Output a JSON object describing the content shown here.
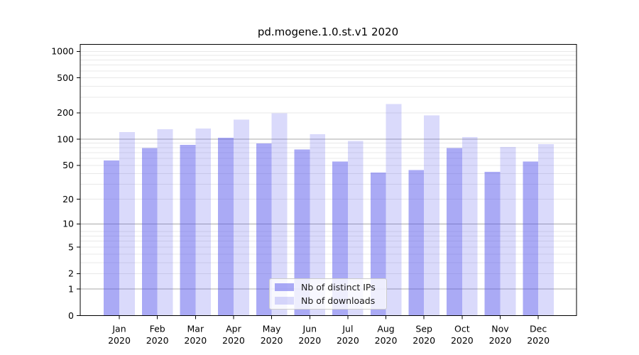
{
  "chart_data": {
    "type": "bar",
    "title": "pd.mogene.1.0.st.v1 2020",
    "categories": [
      "Jan",
      "Feb",
      "Mar",
      "Apr",
      "May",
      "Jun",
      "Jul",
      "Aug",
      "Sep",
      "Oct",
      "Nov",
      "Dec"
    ],
    "x_tick_second_line": "2020",
    "yscale": "log10(1+x)",
    "ylim": [
      0,
      1210
    ],
    "yticks": [
      0,
      1,
      2,
      5,
      10,
      20,
      50,
      100,
      200,
      500,
      1000
    ],
    "major_gridlines": [
      1,
      10,
      100
    ],
    "minor_gridlines": [
      2,
      3,
      4,
      5,
      6,
      7,
      8,
      20,
      30,
      40,
      50,
      60,
      70,
      80,
      90,
      200,
      300,
      400,
      500,
      600,
      700,
      800,
      900,
      1000
    ],
    "grid": true,
    "legend_position": "lower center",
    "colors": {
      "bar_base": "#5555eb",
      "major_grid": "#a9a9a9",
      "minor_grid": "#e8e8e8",
      "axis": "#000000",
      "legend_border": "#cccccc"
    },
    "series": [
      {
        "name": "Nb of distinct IPs",
        "color": "#5555eb",
        "opacity": 0.5,
        "values": [
          57,
          79,
          86,
          104,
          89,
          76,
          55,
          41,
          44,
          79,
          42,
          55
        ]
      },
      {
        "name": "Nb of downloads",
        "color": "#5555eb",
        "opacity": 0.22,
        "values": [
          120,
          130,
          132,
          167,
          198,
          114,
          95,
          252,
          187,
          106,
          81,
          88
        ]
      }
    ]
  }
}
